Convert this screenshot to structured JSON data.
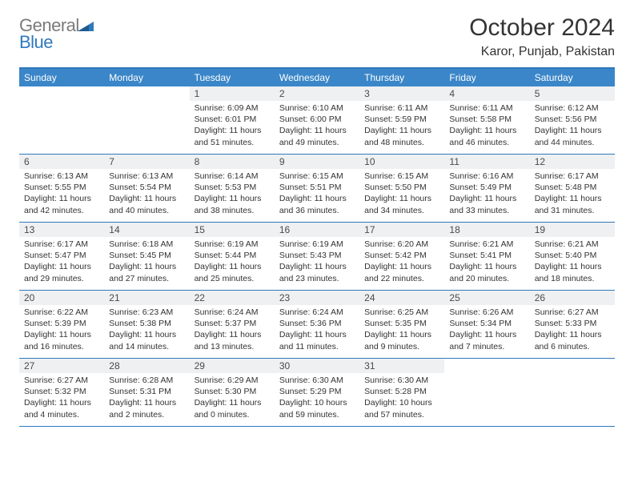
{
  "brand": {
    "part1": "General",
    "part2": "Blue"
  },
  "title": "October 2024",
  "location": "Karor, Punjab, Pakistan",
  "colors": {
    "header_bg": "#3a86c8",
    "rule": "#2f79bd",
    "daynum_bg": "#eef0f2",
    "text": "#333333",
    "logo_gray": "#7a7a7a",
    "logo_blue": "#2f79bd",
    "page_bg": "#ffffff"
  },
  "typography": {
    "title_fontsize": 30,
    "location_fontsize": 16,
    "dayheader_fontsize": 12,
    "daynum_fontsize": 12,
    "detail_fontsize": 10.5
  },
  "day_names": [
    "Sunday",
    "Monday",
    "Tuesday",
    "Wednesday",
    "Thursday",
    "Friday",
    "Saturday"
  ],
  "weeks": [
    [
      {
        "n": "",
        "empty": true
      },
      {
        "n": "",
        "empty": true
      },
      {
        "n": "1",
        "sunrise": "Sunrise: 6:09 AM",
        "sunset": "Sunset: 6:01 PM",
        "day1": "Daylight: 11 hours",
        "day2": "and 51 minutes."
      },
      {
        "n": "2",
        "sunrise": "Sunrise: 6:10 AM",
        "sunset": "Sunset: 6:00 PM",
        "day1": "Daylight: 11 hours",
        "day2": "and 49 minutes."
      },
      {
        "n": "3",
        "sunrise": "Sunrise: 6:11 AM",
        "sunset": "Sunset: 5:59 PM",
        "day1": "Daylight: 11 hours",
        "day2": "and 48 minutes."
      },
      {
        "n": "4",
        "sunrise": "Sunrise: 6:11 AM",
        "sunset": "Sunset: 5:58 PM",
        "day1": "Daylight: 11 hours",
        "day2": "and 46 minutes."
      },
      {
        "n": "5",
        "sunrise": "Sunrise: 6:12 AM",
        "sunset": "Sunset: 5:56 PM",
        "day1": "Daylight: 11 hours",
        "day2": "and 44 minutes."
      }
    ],
    [
      {
        "n": "6",
        "sunrise": "Sunrise: 6:13 AM",
        "sunset": "Sunset: 5:55 PM",
        "day1": "Daylight: 11 hours",
        "day2": "and 42 minutes."
      },
      {
        "n": "7",
        "sunrise": "Sunrise: 6:13 AM",
        "sunset": "Sunset: 5:54 PM",
        "day1": "Daylight: 11 hours",
        "day2": "and 40 minutes."
      },
      {
        "n": "8",
        "sunrise": "Sunrise: 6:14 AM",
        "sunset": "Sunset: 5:53 PM",
        "day1": "Daylight: 11 hours",
        "day2": "and 38 minutes."
      },
      {
        "n": "9",
        "sunrise": "Sunrise: 6:15 AM",
        "sunset": "Sunset: 5:51 PM",
        "day1": "Daylight: 11 hours",
        "day2": "and 36 minutes."
      },
      {
        "n": "10",
        "sunrise": "Sunrise: 6:15 AM",
        "sunset": "Sunset: 5:50 PM",
        "day1": "Daylight: 11 hours",
        "day2": "and 34 minutes."
      },
      {
        "n": "11",
        "sunrise": "Sunrise: 6:16 AM",
        "sunset": "Sunset: 5:49 PM",
        "day1": "Daylight: 11 hours",
        "day2": "and 33 minutes."
      },
      {
        "n": "12",
        "sunrise": "Sunrise: 6:17 AM",
        "sunset": "Sunset: 5:48 PM",
        "day1": "Daylight: 11 hours",
        "day2": "and 31 minutes."
      }
    ],
    [
      {
        "n": "13",
        "sunrise": "Sunrise: 6:17 AM",
        "sunset": "Sunset: 5:47 PM",
        "day1": "Daylight: 11 hours",
        "day2": "and 29 minutes."
      },
      {
        "n": "14",
        "sunrise": "Sunrise: 6:18 AM",
        "sunset": "Sunset: 5:45 PM",
        "day1": "Daylight: 11 hours",
        "day2": "and 27 minutes."
      },
      {
        "n": "15",
        "sunrise": "Sunrise: 6:19 AM",
        "sunset": "Sunset: 5:44 PM",
        "day1": "Daylight: 11 hours",
        "day2": "and 25 minutes."
      },
      {
        "n": "16",
        "sunrise": "Sunrise: 6:19 AM",
        "sunset": "Sunset: 5:43 PM",
        "day1": "Daylight: 11 hours",
        "day2": "and 23 minutes."
      },
      {
        "n": "17",
        "sunrise": "Sunrise: 6:20 AM",
        "sunset": "Sunset: 5:42 PM",
        "day1": "Daylight: 11 hours",
        "day2": "and 22 minutes."
      },
      {
        "n": "18",
        "sunrise": "Sunrise: 6:21 AM",
        "sunset": "Sunset: 5:41 PM",
        "day1": "Daylight: 11 hours",
        "day2": "and 20 minutes."
      },
      {
        "n": "19",
        "sunrise": "Sunrise: 6:21 AM",
        "sunset": "Sunset: 5:40 PM",
        "day1": "Daylight: 11 hours",
        "day2": "and 18 minutes."
      }
    ],
    [
      {
        "n": "20",
        "sunrise": "Sunrise: 6:22 AM",
        "sunset": "Sunset: 5:39 PM",
        "day1": "Daylight: 11 hours",
        "day2": "and 16 minutes."
      },
      {
        "n": "21",
        "sunrise": "Sunrise: 6:23 AM",
        "sunset": "Sunset: 5:38 PM",
        "day1": "Daylight: 11 hours",
        "day2": "and 14 minutes."
      },
      {
        "n": "22",
        "sunrise": "Sunrise: 6:24 AM",
        "sunset": "Sunset: 5:37 PM",
        "day1": "Daylight: 11 hours",
        "day2": "and 13 minutes."
      },
      {
        "n": "23",
        "sunrise": "Sunrise: 6:24 AM",
        "sunset": "Sunset: 5:36 PM",
        "day1": "Daylight: 11 hours",
        "day2": "and 11 minutes."
      },
      {
        "n": "24",
        "sunrise": "Sunrise: 6:25 AM",
        "sunset": "Sunset: 5:35 PM",
        "day1": "Daylight: 11 hours",
        "day2": "and 9 minutes."
      },
      {
        "n": "25",
        "sunrise": "Sunrise: 6:26 AM",
        "sunset": "Sunset: 5:34 PM",
        "day1": "Daylight: 11 hours",
        "day2": "and 7 minutes."
      },
      {
        "n": "26",
        "sunrise": "Sunrise: 6:27 AM",
        "sunset": "Sunset: 5:33 PM",
        "day1": "Daylight: 11 hours",
        "day2": "and 6 minutes."
      }
    ],
    [
      {
        "n": "27",
        "sunrise": "Sunrise: 6:27 AM",
        "sunset": "Sunset: 5:32 PM",
        "day1": "Daylight: 11 hours",
        "day2": "and 4 minutes."
      },
      {
        "n": "28",
        "sunrise": "Sunrise: 6:28 AM",
        "sunset": "Sunset: 5:31 PM",
        "day1": "Daylight: 11 hours",
        "day2": "and 2 minutes."
      },
      {
        "n": "29",
        "sunrise": "Sunrise: 6:29 AM",
        "sunset": "Sunset: 5:30 PM",
        "day1": "Daylight: 11 hours",
        "day2": "and 0 minutes."
      },
      {
        "n": "30",
        "sunrise": "Sunrise: 6:30 AM",
        "sunset": "Sunset: 5:29 PM",
        "day1": "Daylight: 10 hours",
        "day2": "and 59 minutes."
      },
      {
        "n": "31",
        "sunrise": "Sunrise: 6:30 AM",
        "sunset": "Sunset: 5:28 PM",
        "day1": "Daylight: 10 hours",
        "day2": "and 57 minutes."
      },
      {
        "n": "",
        "empty": true
      },
      {
        "n": "",
        "empty": true
      }
    ]
  ]
}
